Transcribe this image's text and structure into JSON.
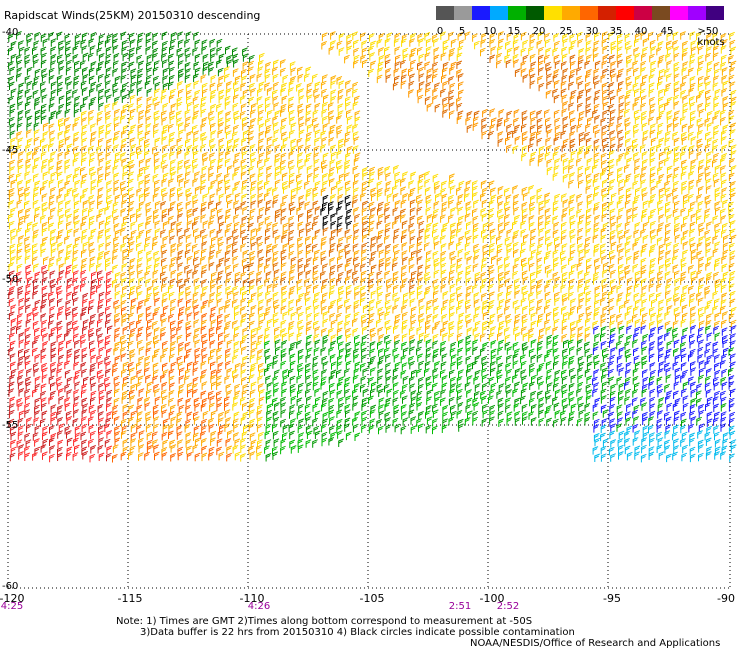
{
  "title": "Rapidscat Winds(25KM) 20150310 descending",
  "legend": {
    "labels": [
      "0",
      "5",
      "10",
      "15",
      "20",
      "25",
      "30",
      "35",
      "40",
      "45",
      ">50 knots"
    ],
    "colors": [
      "#555555",
      "#9a9a9a",
      "#1a1aff",
      "#00aaff",
      "#00b000",
      "#005a00",
      "#ffe000",
      "#ffaa00",
      "#ff6600",
      "#d42000",
      "#ff0000",
      "#cc0044",
      "#7a4a20",
      "#ff00ff",
      "#a000ff",
      "#400080"
    ]
  },
  "axes": {
    "lon_labels": [
      "-120",
      "-115",
      "-110",
      "-105",
      "-100",
      "-95",
      "-90"
    ],
    "lat_labels": [
      "-40",
      "-45",
      "-50",
      "-55",
      "-60"
    ]
  },
  "times": [
    {
      "label": "4:25",
      "color": "#990099"
    },
    {
      "label": "4:26",
      "color": "#990099"
    },
    {
      "label": "2:51",
      "color": "#990099"
    },
    {
      "label": "2:52",
      "color": "#990099"
    }
  ],
  "notes": {
    "line1": "Note: 1) Times are GMT 2)Times along bottom correspond to measurement at -50S",
    "line2": "3)Data buffer is 22 hrs from 20150310 4) Black circles indicate possible contamination",
    "credit": "NOAA/NESDIS/Office of Research and Applications"
  }
}
